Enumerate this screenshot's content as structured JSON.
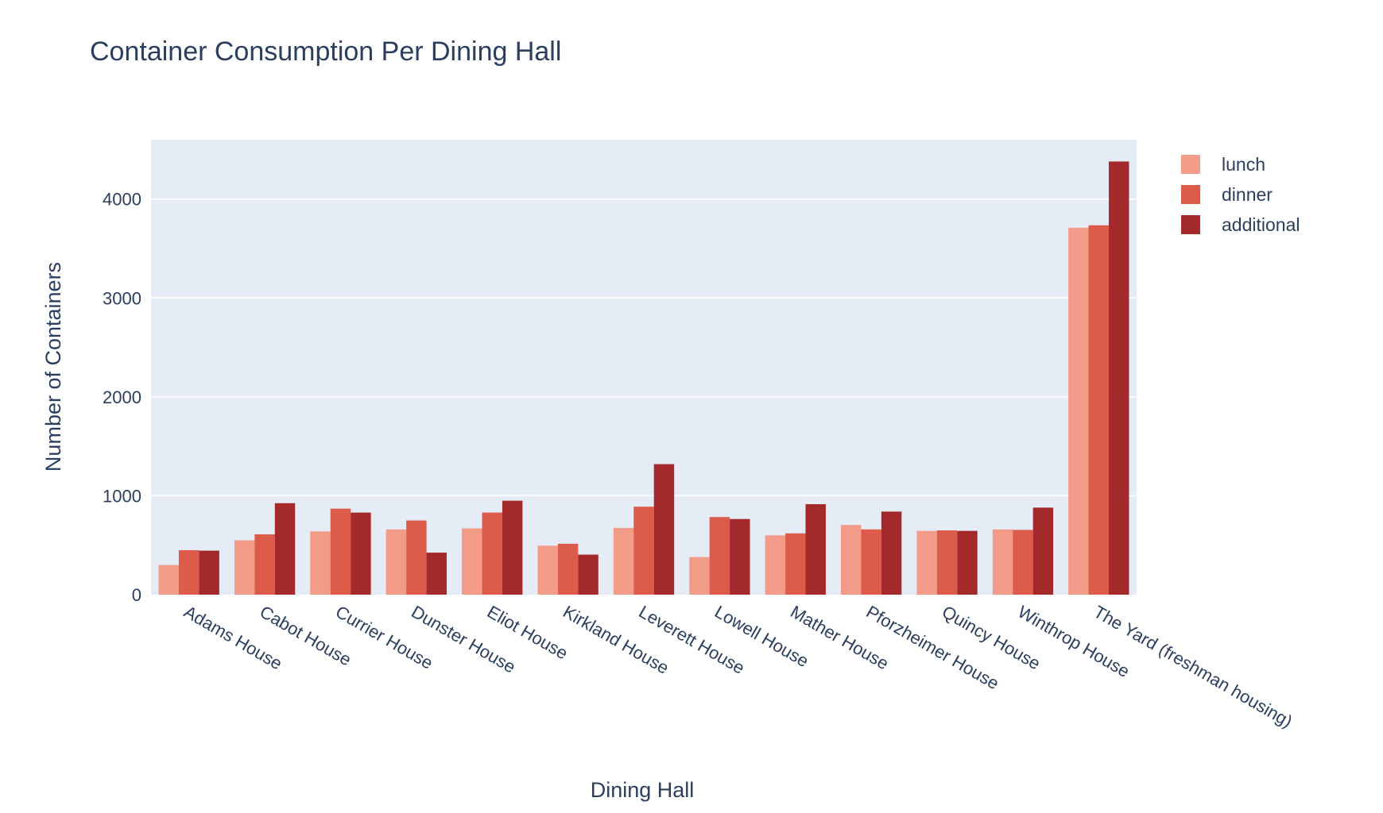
{
  "chart_data": {
    "type": "bar",
    "title": "Container Consumption Per Dining Hall",
    "xlabel": "Dining Hall",
    "ylabel": "Number of Containers",
    "ylim": [
      0,
      4600
    ],
    "yticks": [
      0,
      1000,
      2000,
      3000,
      4000
    ],
    "grid": true,
    "legend_position": "top-right",
    "plot_background": "#e5ecf6",
    "categories": [
      "Adams House",
      "Cabot House",
      "Currier House",
      "Dunster House",
      "Eliot House",
      "Kirkland House",
      "Leverett House",
      "Lowell House",
      "Mather House",
      "Pforzheimer House",
      "Quincy House",
      "Winthrop House",
      "The Yard (freshman housing)"
    ],
    "series": [
      {
        "name": "lunch",
        "color": "#f29b88",
        "values": [
          300,
          550,
          640,
          660,
          670,
          495,
          675,
          380,
          600,
          705,
          645,
          660,
          3710
        ]
      },
      {
        "name": "dinner",
        "color": "#dc5b4a",
        "values": [
          450,
          610,
          870,
          750,
          830,
          515,
          890,
          785,
          620,
          660,
          650,
          655,
          3735
        ]
      },
      {
        "name": "additional",
        "color": "#a3292a",
        "values": [
          445,
          925,
          830,
          425,
          950,
          405,
          1320,
          765,
          915,
          840,
          645,
          880,
          4380
        ]
      }
    ]
  }
}
